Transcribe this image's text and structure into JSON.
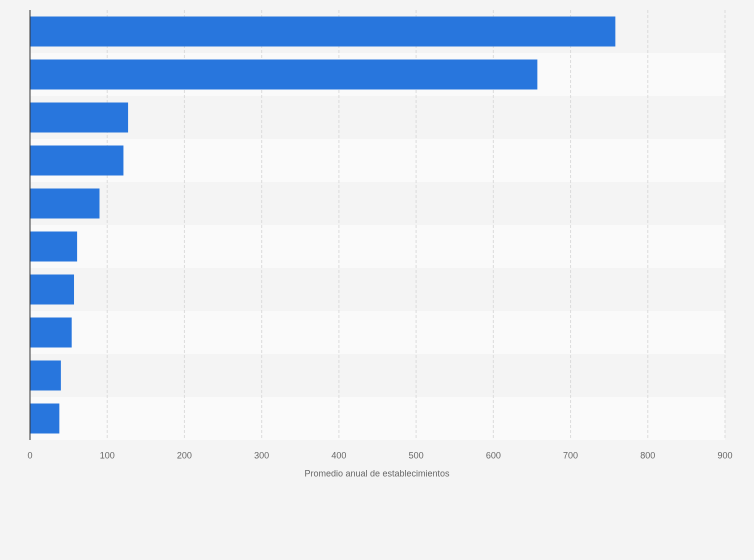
{
  "chart_data": {
    "type": "bar",
    "orientation": "horizontal",
    "x_label": "Promedio anual de establecimientos",
    "categories": [
      null,
      null,
      null,
      null,
      null,
      null,
      null,
      null,
      null,
      null
    ],
    "values": [
      758,
      657,
      127,
      121,
      90,
      61,
      57,
      54,
      40,
      38
    ],
    "color": "#2876dd",
    "xlim": [
      0,
      900
    ],
    "xticks": [
      0,
      100,
      200,
      300,
      400,
      500,
      600,
      700,
      800,
      900
    ],
    "grid": true
  }
}
